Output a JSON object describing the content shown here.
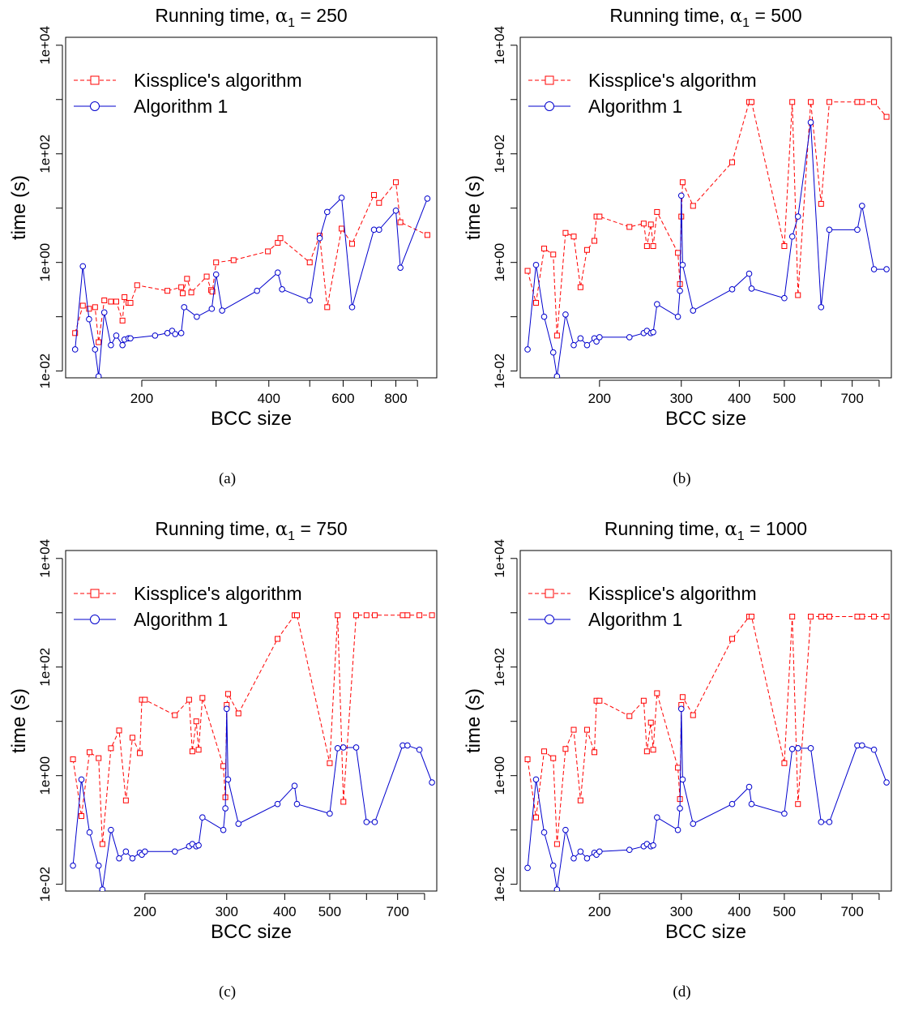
{
  "panels": [
    {
      "caption": "(a)",
      "chart_data": {
        "type": "line",
        "title": "Running time, α1 = 250",
        "title_prefix": "Running time, ",
        "title_alpha": "α",
        "title_sub": "1",
        "title_value": " = 250",
        "xlabel": "BCC size",
        "ylabel": "time (s)",
        "xscale": "log",
        "yscale": "log",
        "xlim": [
          132,
          1000
        ],
        "ylim": [
          0.0075,
          14000
        ],
        "xticks": [
          200,
          300,
          400,
          500,
          600,
          700,
          800,
          900
        ],
        "xtick_labels": [
          "200",
          "",
          "400",
          "",
          "600",
          "",
          "800",
          ""
        ],
        "yticks": [
          0.01,
          1,
          100,
          10000
        ],
        "ytick_labels": [
          "1e-02",
          "1e+00",
          "1e+02",
          "1e+04"
        ],
        "legend_position": "top-left",
        "series": [
          {
            "name": "Kissplice's algorithm",
            "color": "#ff0000",
            "style": "dashed",
            "marker": "square",
            "x": [
              139,
              145,
              150,
              155,
              158,
              163,
              169,
              174,
              180,
              182,
              186,
              188,
              195,
              230,
              248,
              250,
              256,
              262,
              285,
              292,
              294,
              300,
              330,
              398,
              420,
              426,
              500,
              528,
              550,
              595,
              630,
              710,
              730,
              800,
              820,
              950
            ],
            "y": [
              0.05,
              0.16,
              0.14,
              0.15,
              0.034,
              0.2,
              0.19,
              0.19,
              0.085,
              0.23,
              0.18,
              0.18,
              0.38,
              0.3,
              0.35,
              0.27,
              0.5,
              0.28,
              0.55,
              0.31,
              0.29,
              1.0,
              1.1,
              1.6,
              2.3,
              2.8,
              1.0,
              3.1,
              0.15,
              4.2,
              2.2,
              17.5,
              12.5,
              30,
              5.5,
              3.2
            ]
          },
          {
            "name": "Algorithm 1",
            "color": "#0000cd",
            "style": "solid",
            "marker": "circle",
            "x": [
              139,
              145,
              150,
              155,
              158,
              163,
              169,
              174,
              180,
              182,
              186,
              188,
              215,
              230,
              236,
              240,
              248,
              252,
              270,
              293,
              300,
              310,
              375,
              420,
              430,
              500,
              528,
              550,
              595,
              630,
              710,
              730,
              800,
              820,
              950
            ],
            "y": [
              0.025,
              0.85,
              0.09,
              0.025,
              0.008,
              0.12,
              0.03,
              0.045,
              0.03,
              0.038,
              0.04,
              0.04,
              0.045,
              0.05,
              0.055,
              0.048,
              0.05,
              0.15,
              0.1,
              0.14,
              0.6,
              0.13,
              0.3,
              0.65,
              0.32,
              0.2,
              2.8,
              8.5,
              15.5,
              0.15,
              4,
              4,
              9,
              0.8,
              15
            ]
          }
        ]
      }
    },
    {
      "caption": "(b)",
      "chart_data": {
        "type": "line",
        "title": "Running time, α1 = 500",
        "title_prefix": "Running time, ",
        "title_alpha": "α",
        "title_sub": "1",
        "title_value": " = 500",
        "xlabel": "BCC size",
        "ylabel": "time (s)",
        "xscale": "log",
        "yscale": "log",
        "xlim": [
          135,
          850
        ],
        "ylim": [
          0.0075,
          14000
        ],
        "xticks": [
          200,
          300,
          400,
          500,
          600,
          700,
          800
        ],
        "xtick_labels": [
          "200",
          "300",
          "400",
          "500",
          "",
          "700",
          ""
        ],
        "yticks": [
          0.01,
          1,
          100,
          10000
        ],
        "ytick_labels": [
          "1e-02",
          "1e+00",
          "1e+02",
          "1e+04"
        ],
        "legend_position": "top-left",
        "series": [
          {
            "name": "Kissplice's algorithm",
            "color": "#ff0000",
            "style": "dashed",
            "marker": "square",
            "x": [
              140,
              146,
              152,
              159,
              162,
              169,
              176,
              182,
              188,
              195,
              197,
              200,
              232,
              249,
              253,
              258,
              261,
              266,
              295,
              298,
              300,
              302,
              318,
              386,
              420,
              425,
              500,
              520,
              535,
              570,
              600,
              625,
              718,
              735,
              780,
              830
            ],
            "y": [
              0.7,
              0.18,
              1.8,
              1.4,
              0.045,
              3.5,
              3.0,
              0.35,
              1.7,
              2.5,
              7.0,
              7.0,
              4.5,
              5.2,
              2.0,
              5.0,
              2.0,
              8.5,
              1.5,
              0.4,
              7.0,
              30,
              11,
              70,
              900,
              900,
              2.0,
              900,
              0.25,
              900,
              12,
              900,
              900,
              900,
              900,
              480
            ]
          },
          {
            "name": "Algorithm 1",
            "color": "#0000cd",
            "style": "solid",
            "marker": "circle",
            "x": [
              140,
              146,
              152,
              159,
              162,
              169,
              176,
              182,
              188,
              195,
              197,
              200,
              232,
              249,
              253,
              258,
              261,
              266,
              295,
              298,
              300,
              302,
              318,
              386,
              420,
              425,
              500,
              520,
              535,
              570,
              600,
              625,
              718,
              735,
              780,
              830
            ],
            "y": [
              0.025,
              0.9,
              0.1,
              0.022,
              0.008,
              0.11,
              0.03,
              0.04,
              0.03,
              0.04,
              0.035,
              0.042,
              0.042,
              0.05,
              0.055,
              0.05,
              0.052,
              0.17,
              0.1,
              0.3,
              17,
              0.9,
              0.13,
              0.32,
              0.62,
              0.33,
              0.22,
              3.0,
              7.0,
              380,
              0.15,
              4.0,
              4.0,
              11,
              0.75,
              0.75
            ]
          }
        ]
      }
    },
    {
      "caption": "(c)",
      "chart_data": {
        "type": "line",
        "title": "Running time, α1 = 750",
        "title_prefix": "Running time, ",
        "title_alpha": "α",
        "title_sub": "1",
        "title_value": " = 750",
        "xlabel": "BCC size",
        "ylabel": "time (s)",
        "xscale": "log",
        "yscale": "log",
        "xlim": [
          135,
          850
        ],
        "ylim": [
          0.0075,
          14000
        ],
        "xticks": [
          200,
          300,
          400,
          500,
          600,
          700,
          800
        ],
        "xtick_labels": [
          "200",
          "300",
          "400",
          "500",
          "",
          "700",
          ""
        ],
        "yticks": [
          0.01,
          1,
          100,
          10000
        ],
        "ytick_labels": [
          "1e-02",
          "1e+00",
          "1e+02",
          "1e+04"
        ],
        "legend_position": "top-left",
        "series": [
          {
            "name": "Kissplice's algorithm",
            "color": "#ff0000",
            "style": "dashed",
            "marker": "square",
            "x": [
              140,
              146,
              152,
              159,
              162,
              169,
              176,
              182,
              188,
              195,
              197,
              200,
              232,
              249,
              253,
              258,
              261,
              266,
              295,
              298,
              300,
              302,
              318,
              386,
              420,
              425,
              500,
              520,
              535,
              570,
              600,
              625,
              718,
              735,
              780,
              830
            ],
            "y": [
              2.0,
              0.18,
              2.7,
              2.1,
              0.055,
              3.2,
              6.8,
              0.35,
              5.0,
              2.6,
              25,
              25,
              13,
              25,
              2.8,
              10,
              3.0,
              27,
              1.5,
              0.4,
              20,
              32,
              14,
              330,
              900,
              900,
              1.7,
              900,
              0.33,
              900,
              900,
              900,
              900,
              900,
              900,
              900
            ]
          },
          {
            "name": "Algorithm 1",
            "color": "#0000cd",
            "style": "solid",
            "marker": "circle",
            "x": [
              140,
              146,
              152,
              159,
              162,
              169,
              176,
              182,
              188,
              195,
              197,
              200,
              232,
              249,
              253,
              258,
              261,
              266,
              295,
              298,
              300,
              302,
              318,
              386,
              420,
              425,
              500,
              520,
              535,
              570,
              600,
              625,
              718,
              735,
              780,
              830
            ],
            "y": [
              0.022,
              0.85,
              0.09,
              0.022,
              0.008,
              0.1,
              0.03,
              0.04,
              0.03,
              0.038,
              0.035,
              0.04,
              0.04,
              0.05,
              0.055,
              0.05,
              0.052,
              0.17,
              0.1,
              0.25,
              17,
              0.85,
              0.13,
              0.3,
              0.65,
              0.3,
              0.2,
              3.2,
              3.3,
              3.3,
              0.14,
              0.14,
              3.6,
              3.6,
              3.0,
              0.75
            ]
          }
        ]
      }
    },
    {
      "caption": "(d)",
      "chart_data": {
        "type": "line",
        "title": "Running time, α1 = 1000",
        "title_prefix": "Running time, ",
        "title_alpha": "α",
        "title_sub": "1",
        "title_value": " = 1000",
        "xlabel": "BCC size",
        "ylabel": "time (s)",
        "xscale": "log",
        "yscale": "log",
        "xlim": [
          135,
          850
        ],
        "ylim": [
          0.0075,
          14000
        ],
        "xticks": [
          200,
          300,
          400,
          500,
          600,
          700,
          800
        ],
        "xtick_labels": [
          "200",
          "300",
          "400",
          "500",
          "",
          "700",
          ""
        ],
        "yticks": [
          0.01,
          1,
          100,
          10000
        ],
        "ytick_labels": [
          "1e-02",
          "1e+00",
          "1e+02",
          "1e+04"
        ],
        "legend_position": "top-left",
        "series": [
          {
            "name": "Kissplice's algorithm",
            "color": "#ff0000",
            "style": "dashed",
            "marker": "square",
            "x": [
              140,
              146,
              152,
              159,
              162,
              169,
              176,
              182,
              188,
              195,
              197,
              200,
              232,
              249,
              253,
              258,
              261,
              266,
              295,
              298,
              300,
              302,
              318,
              386,
              420,
              425,
              500,
              520,
              535,
              570,
              600,
              625,
              718,
              735,
              780,
              830
            ],
            "y": [
              2.0,
              0.17,
              2.8,
              2.1,
              0.055,
              3.1,
              7.0,
              0.35,
              7.0,
              2.7,
              24,
              24,
              12.5,
              24,
              2.8,
              9.5,
              3.0,
              33,
              1.4,
              0.37,
              20,
              28,
              13,
              330,
              850,
              850,
              1.7,
              850,
              0.3,
              850,
              850,
              850,
              850,
              850,
              850,
              850
            ]
          },
          {
            "name": "Algorithm 1",
            "color": "#0000cd",
            "style": "solid",
            "marker": "circle",
            "x": [
              140,
              146,
              152,
              159,
              162,
              169,
              176,
              182,
              188,
              195,
              197,
              200,
              232,
              249,
              253,
              258,
              261,
              266,
              295,
              298,
              300,
              302,
              318,
              386,
              420,
              425,
              500,
              520,
              535,
              570,
              600,
              625,
              718,
              735,
              780,
              830
            ],
            "y": [
              0.02,
              0.85,
              0.09,
              0.022,
              0.008,
              0.1,
              0.03,
              0.04,
              0.03,
              0.038,
              0.035,
              0.04,
              0.043,
              0.05,
              0.055,
              0.05,
              0.052,
              0.17,
              0.1,
              0.25,
              17,
              0.85,
              0.13,
              0.3,
              0.62,
              0.3,
              0.2,
              3.1,
              3.2,
              3.2,
              0.14,
              0.14,
              3.6,
              3.6,
              3.0,
              0.75
            ]
          }
        ]
      }
    }
  ]
}
